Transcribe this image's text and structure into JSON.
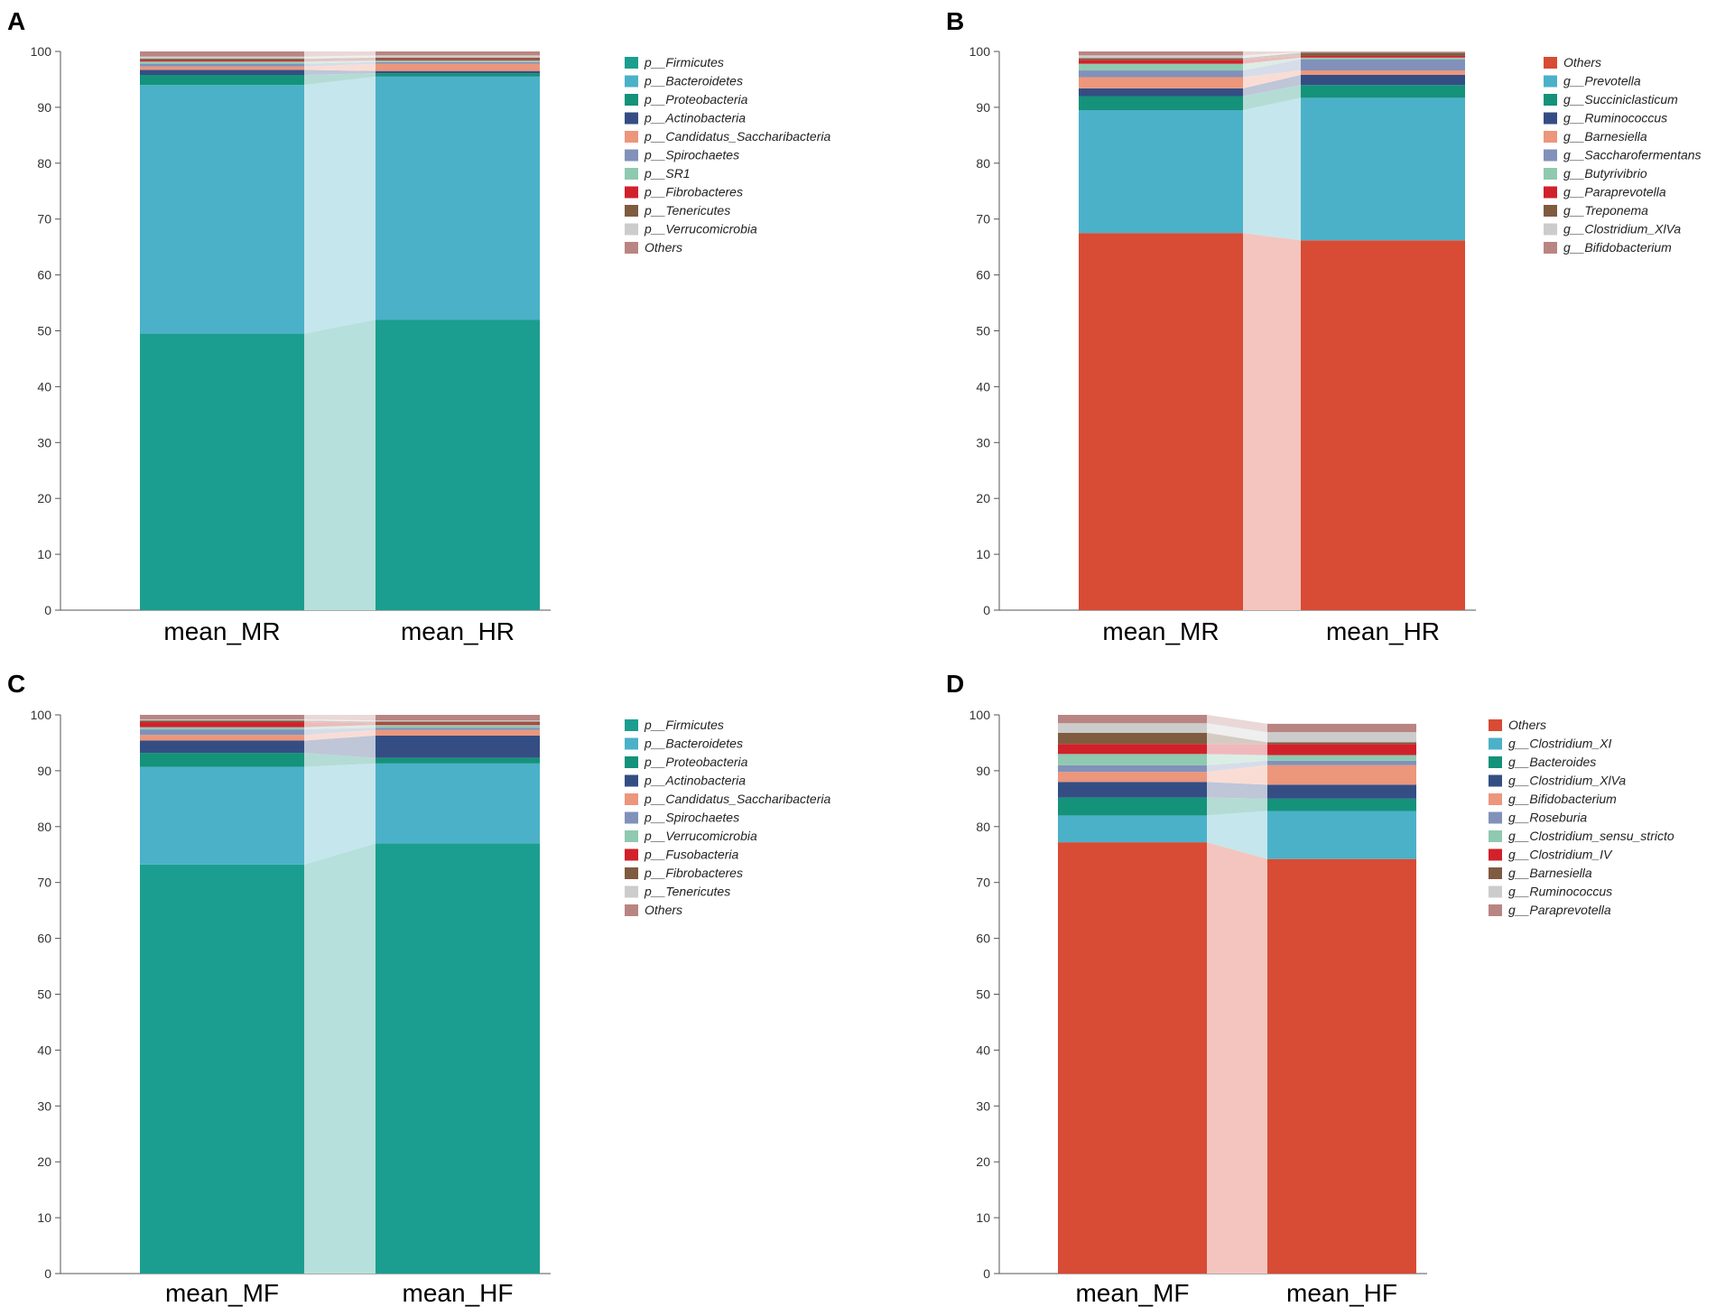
{
  "chart_data": [
    {
      "panel": "A",
      "type": "bar",
      "stacked": true,
      "ylim": [
        0,
        100
      ],
      "yticks": [
        0,
        10,
        20,
        30,
        40,
        50,
        60,
        70,
        80,
        90,
        100
      ],
      "categories": [
        "mean_MR",
        "mean_HR"
      ],
      "series": [
        {
          "name": "p__Firmicutes",
          "color": "#1b9e8f",
          "values": [
            49.5,
            52.0
          ]
        },
        {
          "name": "p__Bacteroidetes",
          "color": "#4bb1c8",
          "values": [
            44.5,
            43.5
          ]
        },
        {
          "name": "p__Proteobacteria",
          "color": "#14927a",
          "values": [
            1.8,
            0.6
          ]
        },
        {
          "name": "p__Actinobacteria",
          "color": "#344e84",
          "values": [
            0.9,
            0.4
          ]
        },
        {
          "name": "p__Candidatus_Saccharibacteria",
          "color": "#ec967c",
          "values": [
            0.6,
            1.3
          ]
        },
        {
          "name": "p__Spirochaetes",
          "color": "#8191b9",
          "values": [
            0.5,
            0.3
          ]
        },
        {
          "name": "p__SR1",
          "color": "#8fc9b0",
          "values": [
            0.4,
            0.3
          ]
        },
        {
          "name": "p__Fibrobacteres",
          "color": "#d1212b",
          "values": [
            0.2,
            0.2
          ]
        },
        {
          "name": "p__Tenericutes",
          "color": "#7f5b40",
          "values": [
            0.3,
            0.3
          ]
        },
        {
          "name": "p__Verrucomicrobia",
          "color": "#cccccc",
          "values": [
            0.4,
            0.4
          ]
        },
        {
          "name": "Others",
          "color": "#b98582",
          "values": [
            0.9,
            0.7
          ]
        }
      ]
    },
    {
      "panel": "B",
      "type": "bar",
      "stacked": true,
      "ylim": [
        0,
        100
      ],
      "yticks": [
        0,
        10,
        20,
        30,
        40,
        50,
        60,
        70,
        80,
        90,
        100
      ],
      "categories": [
        "mean_MR",
        "mean_HR"
      ],
      "series": [
        {
          "name": "Others",
          "color": "#d84b35",
          "values": [
            67.5,
            66.2
          ]
        },
        {
          "name": "g__Prevotella",
          "color": "#4bb1c8",
          "values": [
            22.0,
            25.5
          ]
        },
        {
          "name": "g__Succiniclasticum",
          "color": "#14927a",
          "values": [
            2.5,
            2.3
          ]
        },
        {
          "name": "g__Ruminococcus",
          "color": "#344e84",
          "values": [
            1.4,
            1.8
          ]
        },
        {
          "name": "g__Barnesiella",
          "color": "#ec967c",
          "values": [
            2.0,
            0.8
          ]
        },
        {
          "name": "g__Saccharofermentans",
          "color": "#8191b9",
          "values": [
            1.2,
            2.0
          ]
        },
        {
          "name": "g__Butyrivibrio",
          "color": "#8fc9b0",
          "values": [
            1.2,
            0.3
          ]
        },
        {
          "name": "g__Paraprevotella",
          "color": "#d1212b",
          "values": [
            0.7,
            0.3
          ]
        },
        {
          "name": "g__Treponema",
          "color": "#7f5b40",
          "values": [
            0.3,
            0.6
          ]
        },
        {
          "name": "g__Clostridium_XlVa",
          "color": "#cccccc",
          "values": [
            0.5,
            0.1
          ]
        },
        {
          "name": "g__Bifidobacterium",
          "color": "#b98582",
          "values": [
            0.7,
            0.1
          ]
        }
      ]
    },
    {
      "panel": "C",
      "type": "bar",
      "stacked": true,
      "ylim": [
        0,
        100
      ],
      "yticks": [
        0,
        10,
        20,
        30,
        40,
        50,
        60,
        70,
        80,
        90,
        100
      ],
      "categories": [
        "mean_MF",
        "mean_HF"
      ],
      "series": [
        {
          "name": "p__Firmicutes",
          "color": "#1b9e8f",
          "values": [
            73.2,
            77.0
          ]
        },
        {
          "name": "p__Bacteroidetes",
          "color": "#4bb1c8",
          "values": [
            17.5,
            14.3
          ]
        },
        {
          "name": "p__Proteobacteria",
          "color": "#14927a",
          "values": [
            2.5,
            1.0
          ]
        },
        {
          "name": "p__Actinobacteria",
          "color": "#344e84",
          "values": [
            2.2,
            4.0
          ]
        },
        {
          "name": "p__Candidatus_Saccharibacteria",
          "color": "#ec967c",
          "values": [
            1.0,
            1.0
          ]
        },
        {
          "name": "p__Spirochaetes",
          "color": "#8191b9",
          "values": [
            1.0,
            0.4
          ]
        },
        {
          "name": "p__Verrucomicrobia",
          "color": "#8fc9b0",
          "values": [
            0.4,
            0.5
          ]
        },
        {
          "name": "p__Fusobacteria",
          "color": "#d1212b",
          "values": [
            0.9,
            0.3
          ]
        },
        {
          "name": "p__Fibrobacteres",
          "color": "#7f5b40",
          "values": [
            0.3,
            0.3
          ]
        },
        {
          "name": "p__Tenericutes",
          "color": "#cccccc",
          "values": [
            0.2,
            0.2
          ]
        },
        {
          "name": "Others",
          "color": "#b98582",
          "values": [
            0.8,
            1.0
          ]
        }
      ]
    },
    {
      "panel": "D",
      "type": "bar",
      "stacked": true,
      "ylim": [
        0,
        100
      ],
      "yticks": [
        0,
        10,
        20,
        30,
        40,
        50,
        60,
        70,
        80,
        90,
        100
      ],
      "categories": [
        "mean_MF",
        "mean_HF"
      ],
      "series": [
        {
          "name": "Others",
          "color": "#d84b35",
          "values": [
            77.2,
            74.2
          ]
        },
        {
          "name": "g__Clostridium_XI",
          "color": "#4bb1c8",
          "values": [
            4.8,
            8.6
          ]
        },
        {
          "name": "g__Bacteroides",
          "color": "#14927a",
          "values": [
            3.2,
            2.2
          ]
        },
        {
          "name": "g__Clostridium_XlVa",
          "color": "#344e84",
          "values": [
            2.8,
            2.5
          ]
        },
        {
          "name": "g__Bifidobacterium",
          "color": "#ec967c",
          "values": [
            1.8,
            3.5
          ]
        },
        {
          "name": "g__Roseburia",
          "color": "#8191b9",
          "values": [
            1.2,
            0.8
          ]
        },
        {
          "name": "g__Clostridium_sensu_stricto",
          "color": "#8fc9b0",
          "values": [
            2.0,
            1.0
          ]
        },
        {
          "name": "g__Clostridium_IV",
          "color": "#d1212b",
          "values": [
            1.8,
            2.0
          ]
        },
        {
          "name": "g__Barnesiella",
          "color": "#7f5b40",
          "values": [
            2.0,
            0.3
          ]
        },
        {
          "name": "g__Ruminococcus",
          "color": "#cccccc",
          "values": [
            1.7,
            1.8
          ]
        },
        {
          "name": "g__Paraprevotella",
          "color": "#b98582",
          "values": [
            1.5,
            1.5
          ]
        }
      ]
    }
  ]
}
